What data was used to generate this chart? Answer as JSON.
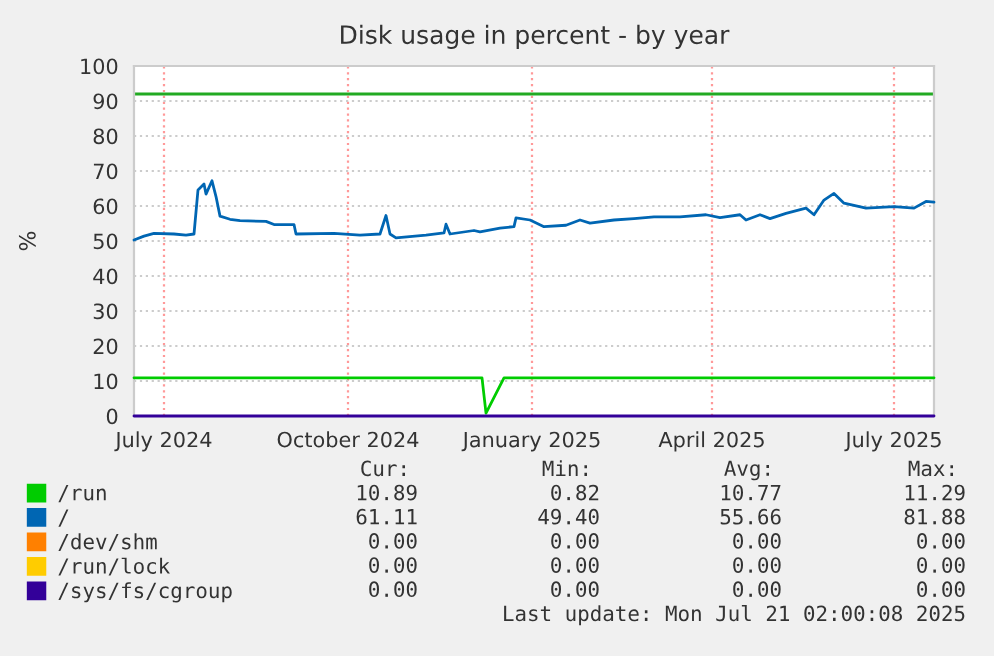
{
  "chart_data": {
    "type": "line",
    "title": "Disk usage in percent - by year",
    "ylabel": "%",
    "xlim": [
      "2024-06-16",
      "2025-07-21"
    ],
    "xticks": [
      {
        "value": "2024-07-01",
        "label": "July 2024"
      },
      {
        "value": "2024-10-01",
        "label": "October 2024"
      },
      {
        "value": "2025-01-01",
        "label": "January 2025"
      },
      {
        "value": "2025-04-01",
        "label": "April 2025"
      },
      {
        "value": "2025-07-01",
        "label": "July 2025"
      }
    ],
    "ylim": [
      0,
      100
    ],
    "yticks": [
      0,
      10,
      20,
      30,
      40,
      50,
      60,
      70,
      80,
      90,
      100
    ],
    "grid": true,
    "legend": "bottom",
    "ref_lines": [
      {
        "axis": "y",
        "value": 92,
        "color": "#22aa22"
      }
    ],
    "series": [
      {
        "name": "/run",
        "color": "#00cc00",
        "x": [
          "2024-06-16",
          "2024-12-07",
          "2024-12-09",
          "2024-12-18",
          "2025-07-21"
        ],
        "values": [
          10.9,
          10.9,
          0.8,
          10.9,
          10.9
        ]
      },
      {
        "name": "/",
        "color": "#0066b3",
        "x": [
          "2024-06-16",
          "2024-06-21",
          "2024-06-26",
          "2024-07-06",
          "2024-07-12",
          "2024-07-16",
          "2024-07-18",
          "2024-07-21",
          "2024-07-22",
          "2024-07-25",
          "2024-07-27",
          "2024-07-29",
          "2024-08-03",
          "2024-08-08",
          "2024-08-21",
          "2024-08-25",
          "2024-09-04",
          "2024-09-05",
          "2024-09-24",
          "2024-10-07",
          "2024-10-17",
          "2024-10-20",
          "2024-10-22",
          "2024-10-25",
          "2024-11-09",
          "2024-11-18",
          "2024-11-19",
          "2024-11-21",
          "2024-12-03",
          "2024-12-06",
          "2024-12-16",
          "2024-12-23",
          "2024-12-24",
          "2024-12-31",
          "2025-01-07",
          "2025-01-18",
          "2025-01-25",
          "2025-01-30",
          "2025-02-11",
          "2025-02-21",
          "2025-03-03",
          "2025-03-16",
          "2025-03-29",
          "2025-04-05",
          "2025-04-15",
          "2025-04-18",
          "2025-04-25",
          "2025-04-30",
          "2025-05-08",
          "2025-05-18",
          "2025-05-22",
          "2025-05-27",
          "2025-06-01",
          "2025-06-06",
          "2025-06-17",
          "2025-07-01",
          "2025-07-11",
          "2025-07-17",
          "2025-07-21"
        ],
        "values": [
          50.3,
          51.4,
          52.2,
          52.0,
          51.7,
          52.0,
          64.6,
          66.3,
          63.4,
          67.2,
          62.7,
          57.1,
          56.2,
          55.8,
          55.6,
          54.7,
          54.7,
          52.0,
          52.2,
          51.7,
          52.0,
          57.3,
          52.0,
          50.9,
          51.7,
          52.3,
          54.8,
          52.0,
          53.0,
          52.6,
          53.7,
          54.1,
          56.6,
          56.0,
          54.1,
          54.5,
          56.0,
          55.1,
          56.0,
          56.4,
          56.9,
          56.9,
          57.5,
          56.7,
          57.5,
          56.0,
          57.5,
          56.4,
          57.9,
          59.4,
          57.5,
          61.7,
          63.6,
          60.8,
          59.4,
          59.8,
          59.4,
          61.3,
          61.1
        ]
      },
      {
        "name": "/dev/shm",
        "color": "#ff8000"
      },
      {
        "name": "/run/lock",
        "color": "#ffcc00"
      },
      {
        "name": "/sys/fs/cgroup",
        "color": "#330099",
        "x": [
          "2024-06-16",
          "2025-07-21"
        ],
        "values": [
          0.0,
          0.0
        ]
      }
    ],
    "annotations": [
      "Cur:",
      "Min:",
      "Avg:",
      "Max:",
      "10.89",
      "0.82",
      "10.77",
      "11.29",
      "61.11",
      "49.40",
      "55.66",
      "81.88",
      "0.00",
      "0.00",
      "0.00",
      "0.00",
      "0.00",
      "0.00",
      "0.00",
      "0.00",
      "0.00",
      "0.00",
      "0.00",
      "0.00",
      "Last update: Mon Jul 21 02:00:08 2025"
    ]
  }
}
